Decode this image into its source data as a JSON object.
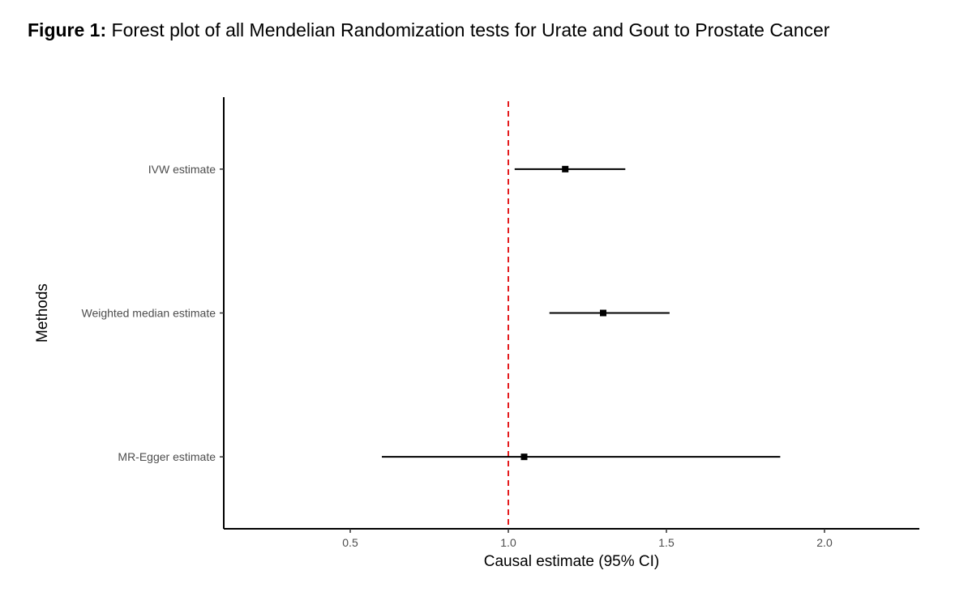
{
  "caption": {
    "label": "Figure 1:",
    "text": "Forest plot of all Mendelian Randomization tests for Urate and Gout to Prostate Cancer"
  },
  "chart_data": {
    "type": "forest",
    "xlabel": "Causal estimate (95% CI)",
    "ylabel": "Methods",
    "xlim": [
      0.1,
      2.3
    ],
    "x_ticks": [
      0.5,
      1.0,
      1.5,
      2.0
    ],
    "x_tick_labels": [
      "0.5",
      "1.0",
      "1.5",
      "2.0"
    ],
    "reference_line": {
      "x": 1.0,
      "style": "dashed",
      "color": "#e41a1c"
    },
    "grid": false,
    "rows": [
      {
        "method": "IVW estimate",
        "estimate": 1.18,
        "lower": 1.02,
        "upper": 1.37
      },
      {
        "method": "Weighted median estimate",
        "estimate": 1.3,
        "lower": 1.13,
        "upper": 1.51
      },
      {
        "method": "MR-Egger estimate",
        "estimate": 1.05,
        "lower": 0.6,
        "upper": 1.86
      }
    ]
  }
}
